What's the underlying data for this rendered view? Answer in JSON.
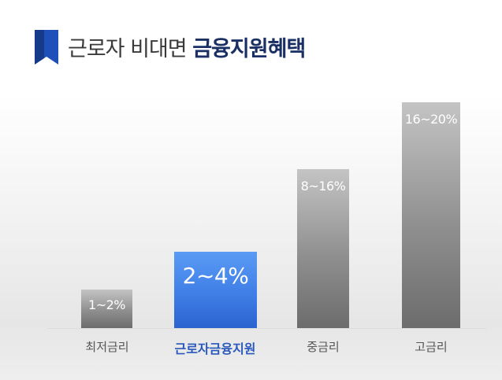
{
  "title": {
    "plain": "근로자 비대면",
    "bold": "금융지원혜택"
  },
  "items": [
    {
      "label": "최저금리",
      "rate": "1~2%"
    },
    {
      "label": "근로자금융지원",
      "rate": "2~4%"
    },
    {
      "label": "중금리",
      "rate": "8~16%"
    },
    {
      "label": "고금리",
      "rate": "16~20%"
    }
  ]
}
